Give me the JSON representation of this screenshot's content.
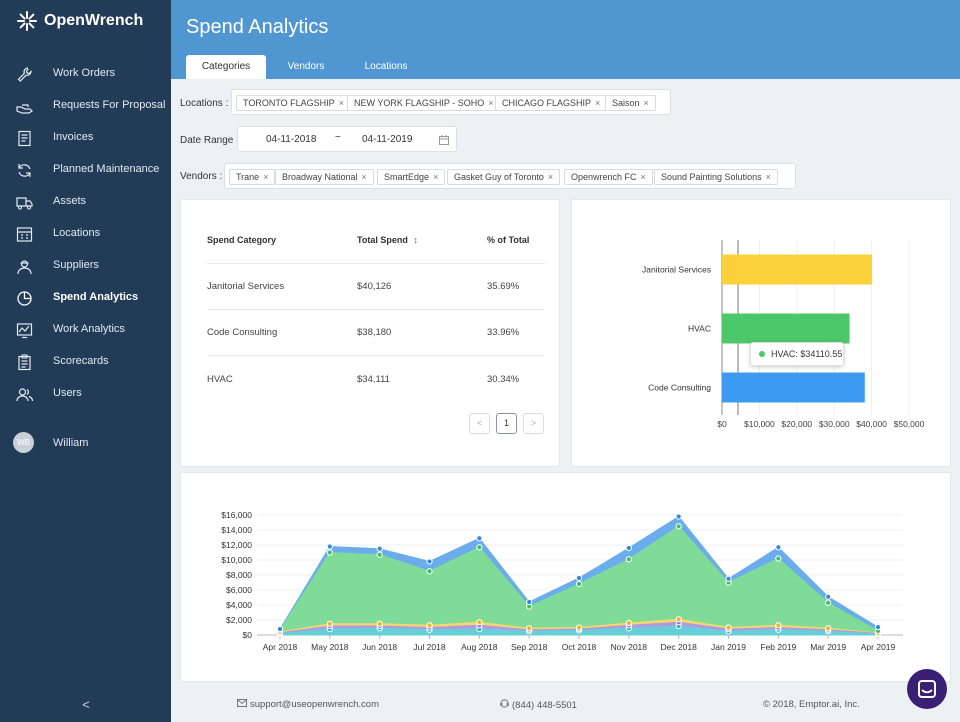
{
  "app": {
    "name": "OpenWrench"
  },
  "sidebar": {
    "items": [
      {
        "label": "Work Orders",
        "icon": "wrench-icon"
      },
      {
        "label": "Requests For Proposal",
        "icon": "hand-icon"
      },
      {
        "label": "Invoices",
        "icon": "invoice-icon"
      },
      {
        "label": "Planned Maintenance",
        "icon": "refresh-icon"
      },
      {
        "label": "Assets",
        "icon": "truck-icon"
      },
      {
        "label": "Locations",
        "icon": "building-icon"
      },
      {
        "label": "Suppliers",
        "icon": "worker-icon"
      },
      {
        "label": "Spend Analytics",
        "icon": "pie-chart-icon",
        "active": true
      },
      {
        "label": "Work Analytics",
        "icon": "line-chart-icon"
      },
      {
        "label": "Scorecards",
        "icon": "clipboard-icon"
      },
      {
        "label": "Users",
        "icon": "users-icon"
      }
    ],
    "user": {
      "initials": "WB",
      "name": "William"
    },
    "collapse_label": "<"
  },
  "header": {
    "title": "Spend Analytics",
    "tabs": [
      {
        "label": "Categories",
        "active": true
      },
      {
        "label": "Vendors"
      },
      {
        "label": "Locations"
      }
    ]
  },
  "filters": {
    "locations_label": "Locations :",
    "locations": [
      "TORONTO FLAGSHIP",
      "NEW YORK FLAGSHIP - SOHO",
      "CHICAGO FLAGSHIP",
      "Saison"
    ],
    "date_label": "Date Range :",
    "date_from": "04-11-2018",
    "date_sep": "~",
    "date_to": "04-11-2019",
    "vendors_label": "Vendors :",
    "vendors": [
      "Trane",
      "Broadway National",
      "SmartEdge",
      "Gasket Guy of Toronto",
      "Openwrench FC",
      "Sound Painting Solutions"
    ],
    "remove_glyph": "×"
  },
  "table": {
    "headers": [
      "Spend Category",
      "Total Spend",
      "% of Total"
    ],
    "sort_glyph": "↕",
    "rows": [
      [
        "Janitorial Services",
        "$40,126",
        "35.69%"
      ],
      [
        "Code Consulting",
        "$38,180",
        "33.96%"
      ],
      [
        "HVAC",
        "$34,111",
        "30.34%"
      ]
    ],
    "pagination": {
      "prev": "<",
      "page": "1",
      "next": ">"
    }
  },
  "bar_chart": {
    "tooltip": "HVAC: $34110.55"
  },
  "chart_data": [
    {
      "type": "bar",
      "orientation": "horizontal",
      "categories": [
        "Janitorial Services",
        "HVAC",
        "Code Consulting"
      ],
      "values": [
        40126,
        34111,
        38180
      ],
      "colors": [
        "#fbd13c",
        "#4cc86a",
        "#3c9bf0"
      ],
      "xlim": [
        0,
        50000
      ],
      "xticks": [
        "$0",
        "$10,000",
        "$20,000",
        "$30,000",
        "$40,000",
        "$50,000"
      ]
    },
    {
      "type": "area",
      "x": [
        "Apr 2018",
        "May 2018",
        "Jun 2018",
        "Jul 2018",
        "Aug 2018",
        "Sep 2018",
        "Oct 2018",
        "Nov 2018",
        "Dec 2018",
        "Jan 2019",
        "Feb 2019",
        "Mar 2019",
        "Apr 2019"
      ],
      "ylim": [
        0,
        16000
      ],
      "yticks": [
        "$0",
        "$2,000",
        "$4,000",
        "$6,000",
        "$8,000",
        "$10,000",
        "$12,000",
        "$14,000",
        "$16,000"
      ],
      "grid": true,
      "series": [
        {
          "values": [
            200,
            800,
            900,
            700,
            800,
            500,
            600,
            900,
            1200,
            500,
            700,
            500,
            100
          ],
          "color": "#65cfd8"
        },
        {
          "values": [
            100,
            400,
            300,
            300,
            500,
            200,
            200,
            400,
            500,
            300,
            300,
            200,
            100
          ],
          "color": "#b29ae0"
        },
        {
          "values": [
            100,
            300,
            300,
            300,
            400,
            200,
            200,
            300,
            400,
            200,
            300,
            200,
            50
          ],
          "color": "#f5d86b"
        },
        {
          "values": [
            300,
            9500,
            9200,
            7200,
            10000,
            2900,
            5800,
            8500,
            12400,
            6000,
            8900,
            3400,
            300
          ],
          "color": "#7fdb97"
        },
        {
          "values": [
            100,
            800,
            800,
            1300,
            1200,
            600,
            800,
            1500,
            1300,
            500,
            1500,
            800,
            500
          ],
          "color": "#6aacec"
        }
      ]
    }
  ],
  "footer": {
    "email": "support@useopenwrench.com",
    "phone": "(844) 448-5501",
    "copyright": "© 2018, Emptor.ai, Inc."
  }
}
